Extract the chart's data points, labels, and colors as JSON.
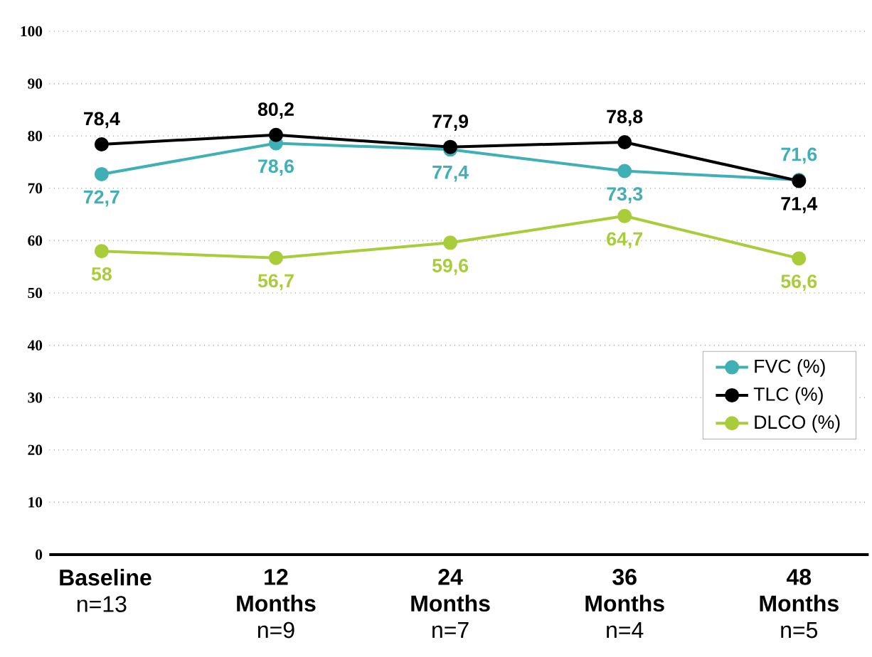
{
  "chart_data": {
    "type": "line",
    "categories": [
      "**Baseline** n=13",
      "**12 Months** n=9",
      "**24 Months** n=7",
      "**36 Months** n=4",
      "**48 Months** n=5"
    ],
    "series": [
      {
        "name": "FVC (%)",
        "color": "#3fb0b5",
        "values": [
          72.7,
          78.6,
          77.4,
          73.3,
          71.6
        ],
        "value_labels": [
          "72,7",
          "78,6",
          "77,4",
          "73,3",
          "71,6"
        ]
      },
      {
        "name": "TLC (%)",
        "color": "#000000",
        "values": [
          78.4,
          80.2,
          77.9,
          78.8,
          71.4
        ],
        "value_labels": [
          "78,4",
          "80,2",
          "77,9",
          "78,8",
          "71,4"
        ]
      },
      {
        "name": "DLCO (%)",
        "color": "#a8cc3a",
        "values": [
          58,
          56.7,
          59.6,
          64.7,
          56.6
        ],
        "value_labels": [
          "58",
          "56,7",
          "59,6",
          "64,7",
          "56,6"
        ]
      }
    ],
    "ylim": [
      0,
      100
    ],
    "yticks": [
      0,
      10,
      20,
      30,
      40,
      50,
      60,
      70,
      80,
      90,
      100
    ],
    "grid": "y",
    "legend": "right",
    "marker": "circle",
    "line_style": "solid"
  }
}
